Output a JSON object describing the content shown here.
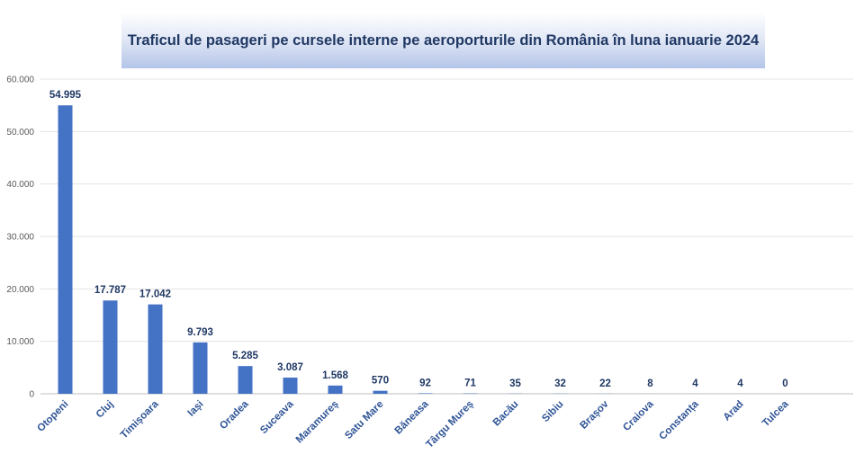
{
  "chart_data": {
    "type": "bar",
    "title": "Traficul de pasageri pe cursele interne pe aeroporturile din România în luna ianuarie 2024",
    "categories": [
      "Otopeni",
      "Cluj",
      "Timișoara",
      "Iași",
      "Oradea",
      "Suceava",
      "Maramureș",
      "Satu Mare",
      "Băneasa",
      "Târgu Mureș",
      "Bacău",
      "Sibiu",
      "Brașov",
      "Craiova",
      "Constanța",
      "Arad",
      "Tulcea"
    ],
    "values": [
      54995,
      17787,
      17042,
      9793,
      5285,
      3087,
      1568,
      570,
      92,
      71,
      35,
      32,
      22,
      8,
      4,
      4,
      0
    ],
    "value_labels": [
      "54.995",
      "17.787",
      "17.042",
      "9.793",
      "5.285",
      "3.087",
      "1.568",
      "570",
      "92",
      "71",
      "35",
      "32",
      "22",
      "8",
      "4",
      "4",
      "0"
    ],
    "yticks": [
      "0",
      "10.000",
      "20.000",
      "30.000",
      "40.000",
      "50.000",
      "60.000"
    ],
    "ylim": [
      0,
      60000
    ],
    "xlabel": "",
    "ylabel": "",
    "grid": true,
    "legend": "none",
    "bar_color": "#4472c4"
  }
}
